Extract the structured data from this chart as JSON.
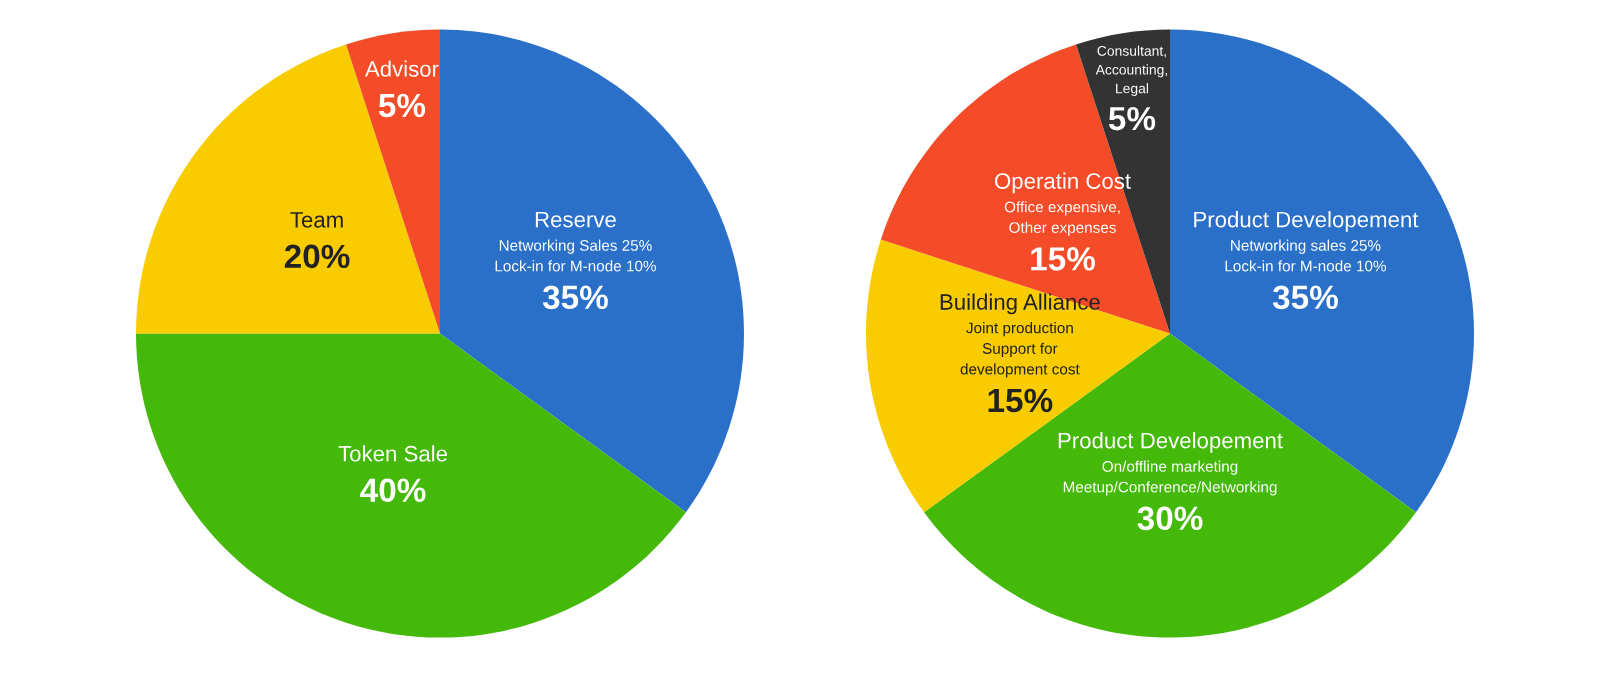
{
  "chart_data": [
    {
      "type": "pie",
      "categories": [
        "Reserve\nNetworking Sales 25%\nLock-in for M-node 10%",
        "Token Sale",
        "Team",
        "Advisor"
      ],
      "values": [
        35,
        40,
        20,
        5
      ],
      "value_labels": [
        "35%",
        "40%",
        "20%",
        "5%"
      ],
      "colors": [
        "#2a70c8",
        "#45b90a",
        "#f9cc00",
        "#f44c28"
      ]
    },
    {
      "type": "pie",
      "categories": [
        "Product Developement\nNetworking sales 25%\nLock-in for M-node 10%",
        "Product Developement\nOn/offline marketing\nMeetup/Conference/Networking",
        "Building Alliance\nJoint production\nSupport for\ndevelopment cost",
        "Operatin Cost\nOffice expensive,\nOther expenses",
        "Consultant,\nAccounting,\nLegal"
      ],
      "values": [
        35,
        30,
        15,
        15,
        5
      ],
      "value_labels": [
        "35%",
        "30%",
        "15%",
        "15%",
        "5%"
      ],
      "colors": [
        "#2a70c8",
        "#45b90a",
        "#f9cc00",
        "#f44c28",
        "#333333"
      ]
    }
  ]
}
